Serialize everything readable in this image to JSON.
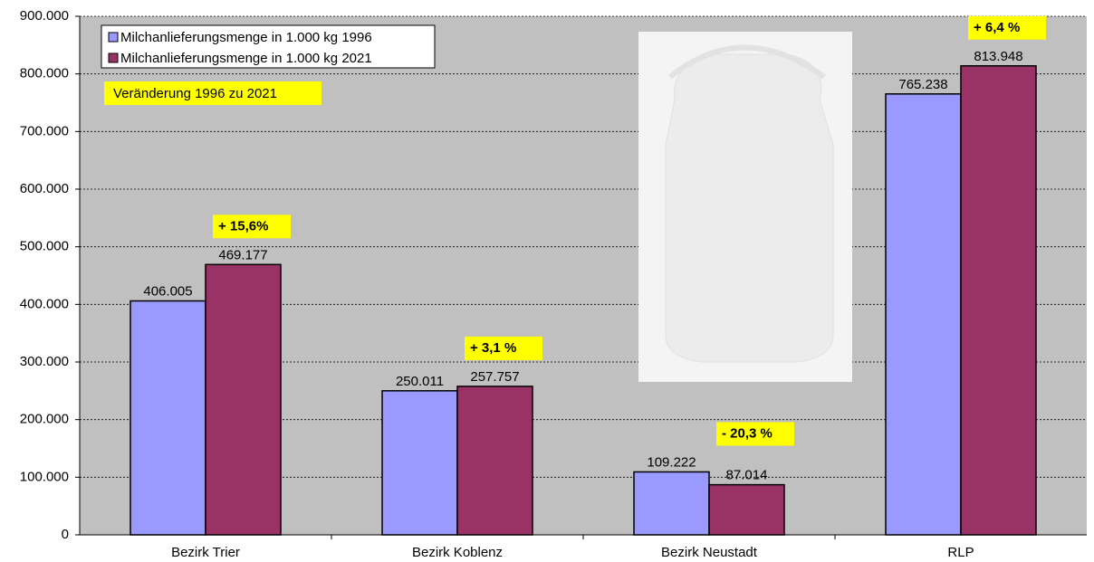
{
  "chart_data": {
    "type": "bar",
    "categories": [
      "Bezirk Trier",
      "Bezirk Koblenz",
      "Bezirk Neustadt",
      "RLP"
    ],
    "series": [
      {
        "name": "Milchanlieferungsmenge in 1.000 kg 1996",
        "color": "#9999ff",
        "values": [
          406005,
          250011,
          109222,
          765238
        ],
        "value_labels": [
          "406.005",
          "250.011",
          "109.222",
          "765.238"
        ]
      },
      {
        "name": "Milchanlieferungsmenge in 1.000 kg 2021",
        "color": "#993366",
        "values": [
          469177,
          257757,
          87014,
          813948
        ],
        "value_labels": [
          "469.177",
          "257.757",
          "87.014",
          "813.948"
        ]
      }
    ],
    "change_labels": [
      "+ 15,6%",
      "+ 3,1 %",
      "- 20,3 %",
      "+ 6,4 %"
    ],
    "change_label_colors": [
      "#000000",
      "#000000",
      "#ff0000",
      "#000000"
    ],
    "annotation": "Veränderung 1996 zu 2021",
    "ylim": [
      0,
      900000
    ],
    "yticks": [
      0,
      {
        "value": 100000,
        "label": "100.000"
      },
      {
        "value": 200000,
        "label": "200.000"
      },
      {
        "value": 300000,
        "label": "300.000"
      },
      {
        "value": 400000,
        "label": "400.000"
      },
      {
        "value": 500000,
        "label": "500.000"
      },
      {
        "value": 600000,
        "label": "600.000"
      },
      {
        "value": 700000,
        "label": "700.000"
      },
      {
        "value": 800000,
        "label": "800.000"
      },
      {
        "value": 900000,
        "label": "900.000"
      }
    ],
    "grid": true
  }
}
